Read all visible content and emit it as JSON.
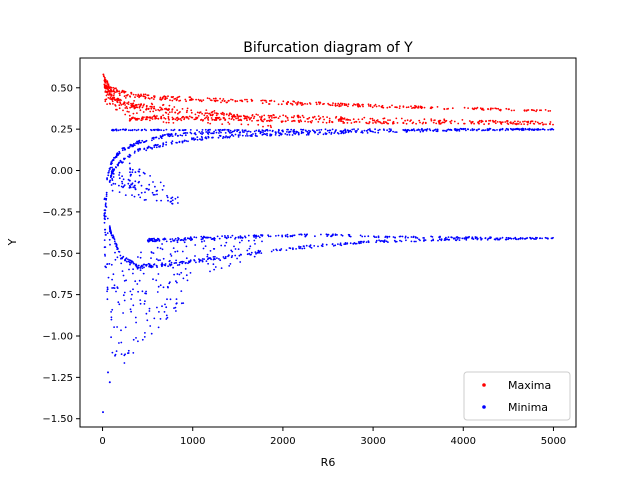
{
  "chart_data": {
    "type": "scatter",
    "title": "Bifurcation diagram of Y",
    "xlabel": "R6",
    "ylabel": "Y",
    "xlim": [
      -250,
      5250
    ],
    "ylim": [
      -1.55,
      0.68
    ],
    "xticks": [
      0,
      1000,
      2000,
      3000,
      4000,
      5000
    ],
    "xtick_labels": [
      "0",
      "1000",
      "2000",
      "3000",
      "4000",
      "5000"
    ],
    "yticks": [
      0.5,
      0.25,
      0.0,
      -0.25,
      -0.5,
      -0.75,
      -1.0,
      -1.25,
      -1.5
    ],
    "ytick_labels": [
      "0.50",
      "0.25",
      "0.00",
      "−0.25",
      "−0.50",
      "−0.75",
      "−1.00",
      "−1.25",
      "−1.50"
    ],
    "grid": false,
    "legend_position": "bottom-right",
    "series": [
      {
        "name": "Maxima",
        "color": "#ff0000",
        "branches": [
          {
            "x": [
              20,
              100,
              300,
              600,
              1000,
              2000,
              3000,
              4000,
              5000
            ],
            "y": [
              0.55,
              0.49,
              0.46,
              0.44,
              0.43,
              0.41,
              0.39,
              0.375,
              0.36
            ],
            "spread": 0.015,
            "density": 1.0
          },
          {
            "x": [
              20,
              100,
              300,
              600,
              1000,
              2000,
              3000,
              4000,
              5000
            ],
            "y": [
              0.52,
              0.44,
              0.4,
              0.37,
              0.345,
              0.325,
              0.31,
              0.3,
              0.29
            ],
            "spread": 0.015,
            "density": 0.9
          },
          {
            "x": [
              300,
              600,
              1000,
              1500,
              2000,
              3000,
              4000,
              5000
            ],
            "y": [
              0.31,
              0.32,
              0.315,
              0.31,
              0.3,
              0.29,
              0.285,
              0.28
            ],
            "spread": 0.01,
            "density": 0.7
          },
          {
            "x": [
              30,
              200,
              500,
              1000,
              1500,
              1900
            ],
            "y": [
              0.48,
              0.4,
              0.35,
              0.33,
              0.31,
              0.28
            ],
            "spread": 0.07,
            "density": 1.2
          }
        ]
      },
      {
        "name": "Minima",
        "color": "#0000ff",
        "branches": [
          {
            "x": [
              20,
              50,
              100,
              200,
              400,
              700,
              1000,
              1500,
              2000,
              3000,
              4000,
              5000
            ],
            "y": [
              -0.3,
              -0.12,
              -0.02,
              0.05,
              0.12,
              0.16,
              0.19,
              0.21,
              0.22,
              0.235,
              0.245,
              0.25
            ],
            "spread": 0.012,
            "density": 1.0
          },
          {
            "x": [
              50,
              100,
              200,
              400,
              700,
              1000,
              1500,
              2000,
              3000,
              4000,
              5000
            ],
            "y": [
              -0.05,
              0.05,
              0.12,
              0.17,
              0.21,
              0.225,
              0.235,
              0.24,
              0.245,
              0.248,
              0.25
            ],
            "spread": 0.01,
            "density": 0.9
          },
          {
            "x": [
              100,
              300,
              700,
              1000,
              1300,
              1560
            ],
            "y": [
              0.245,
              0.245,
              0.245,
              0.245,
              0.245,
              0.245
            ],
            "spread": 0.004,
            "density": 0.6
          },
          {
            "x": [
              80,
              200,
              400,
              700,
              1000,
              1500,
              2000,
              2500,
              3000,
              4000,
              5000
            ],
            "y": [
              -0.35,
              -0.52,
              -0.58,
              -0.57,
              -0.55,
              -0.51,
              -0.475,
              -0.45,
              -0.43,
              -0.415,
              -0.41
            ],
            "spread": 0.012,
            "density": 1.0
          },
          {
            "x": [
              500,
              800,
              1000,
              1500,
              2000,
              2500,
              3000,
              4000,
              5000
            ],
            "y": [
              -0.42,
              -0.42,
              -0.41,
              -0.4,
              -0.395,
              -0.39,
              -0.4,
              -0.405,
              -0.41
            ],
            "spread": 0.01,
            "density": 0.8
          },
          {
            "x": [
              20,
              100,
              250,
              500,
              800,
              1200,
              1800
            ],
            "y": [
              -0.35,
              -0.55,
              -0.7,
              -0.65,
              -0.55,
              -0.5,
              -0.45
            ],
            "spread": 0.2,
            "density": 1.4
          },
          {
            "x": [
              50,
              100,
              200,
              400,
              700,
              900
            ],
            "y": [
              -0.6,
              -0.95,
              -1.1,
              -0.98,
              -0.85,
              -0.75
            ],
            "spread": 0.15,
            "density": 0.7
          },
          {
            "x": [
              100,
              300,
              500,
              800
            ],
            "y": [
              -0.05,
              -0.1,
              -0.15,
              -0.18
            ],
            "spread": 0.07,
            "density": 0.6
          },
          {
            "x": [
              300,
              500,
              700,
              850
            ],
            "y": [
              -0.03,
              -0.08,
              -0.13,
              -0.18
            ],
            "spread": 0.08,
            "density": 0.5
          }
        ]
      }
    ],
    "outliers": [
      {
        "series": "Maxima",
        "x": [
          10,
          15,
          25
        ],
        "y": [
          0.58,
          0.57,
          0.56
        ]
      },
      {
        "series": "Minima",
        "x": [
          5,
          30,
          80,
          60,
          20
        ],
        "y": [
          -1.46,
          -0.58,
          -1.28,
          -1.22,
          -0.27
        ]
      }
    ]
  }
}
